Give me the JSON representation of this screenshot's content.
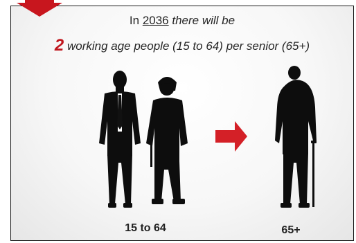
{
  "headline": {
    "line1_prefix": "In",
    "year": "2036",
    "line1_suffix": "there will be",
    "ratio_number": "2",
    "line2_text": "working age people (15 to 64) per senior (65+)"
  },
  "captions": {
    "working_age": "15 to 64",
    "senior": "65+"
  },
  "colors": {
    "accent_red": "#c0161d",
    "silhouette": "#0d0d0d"
  },
  "icons": {
    "corner": "down-arrow-icon",
    "middle": "right-arrow-icon"
  }
}
